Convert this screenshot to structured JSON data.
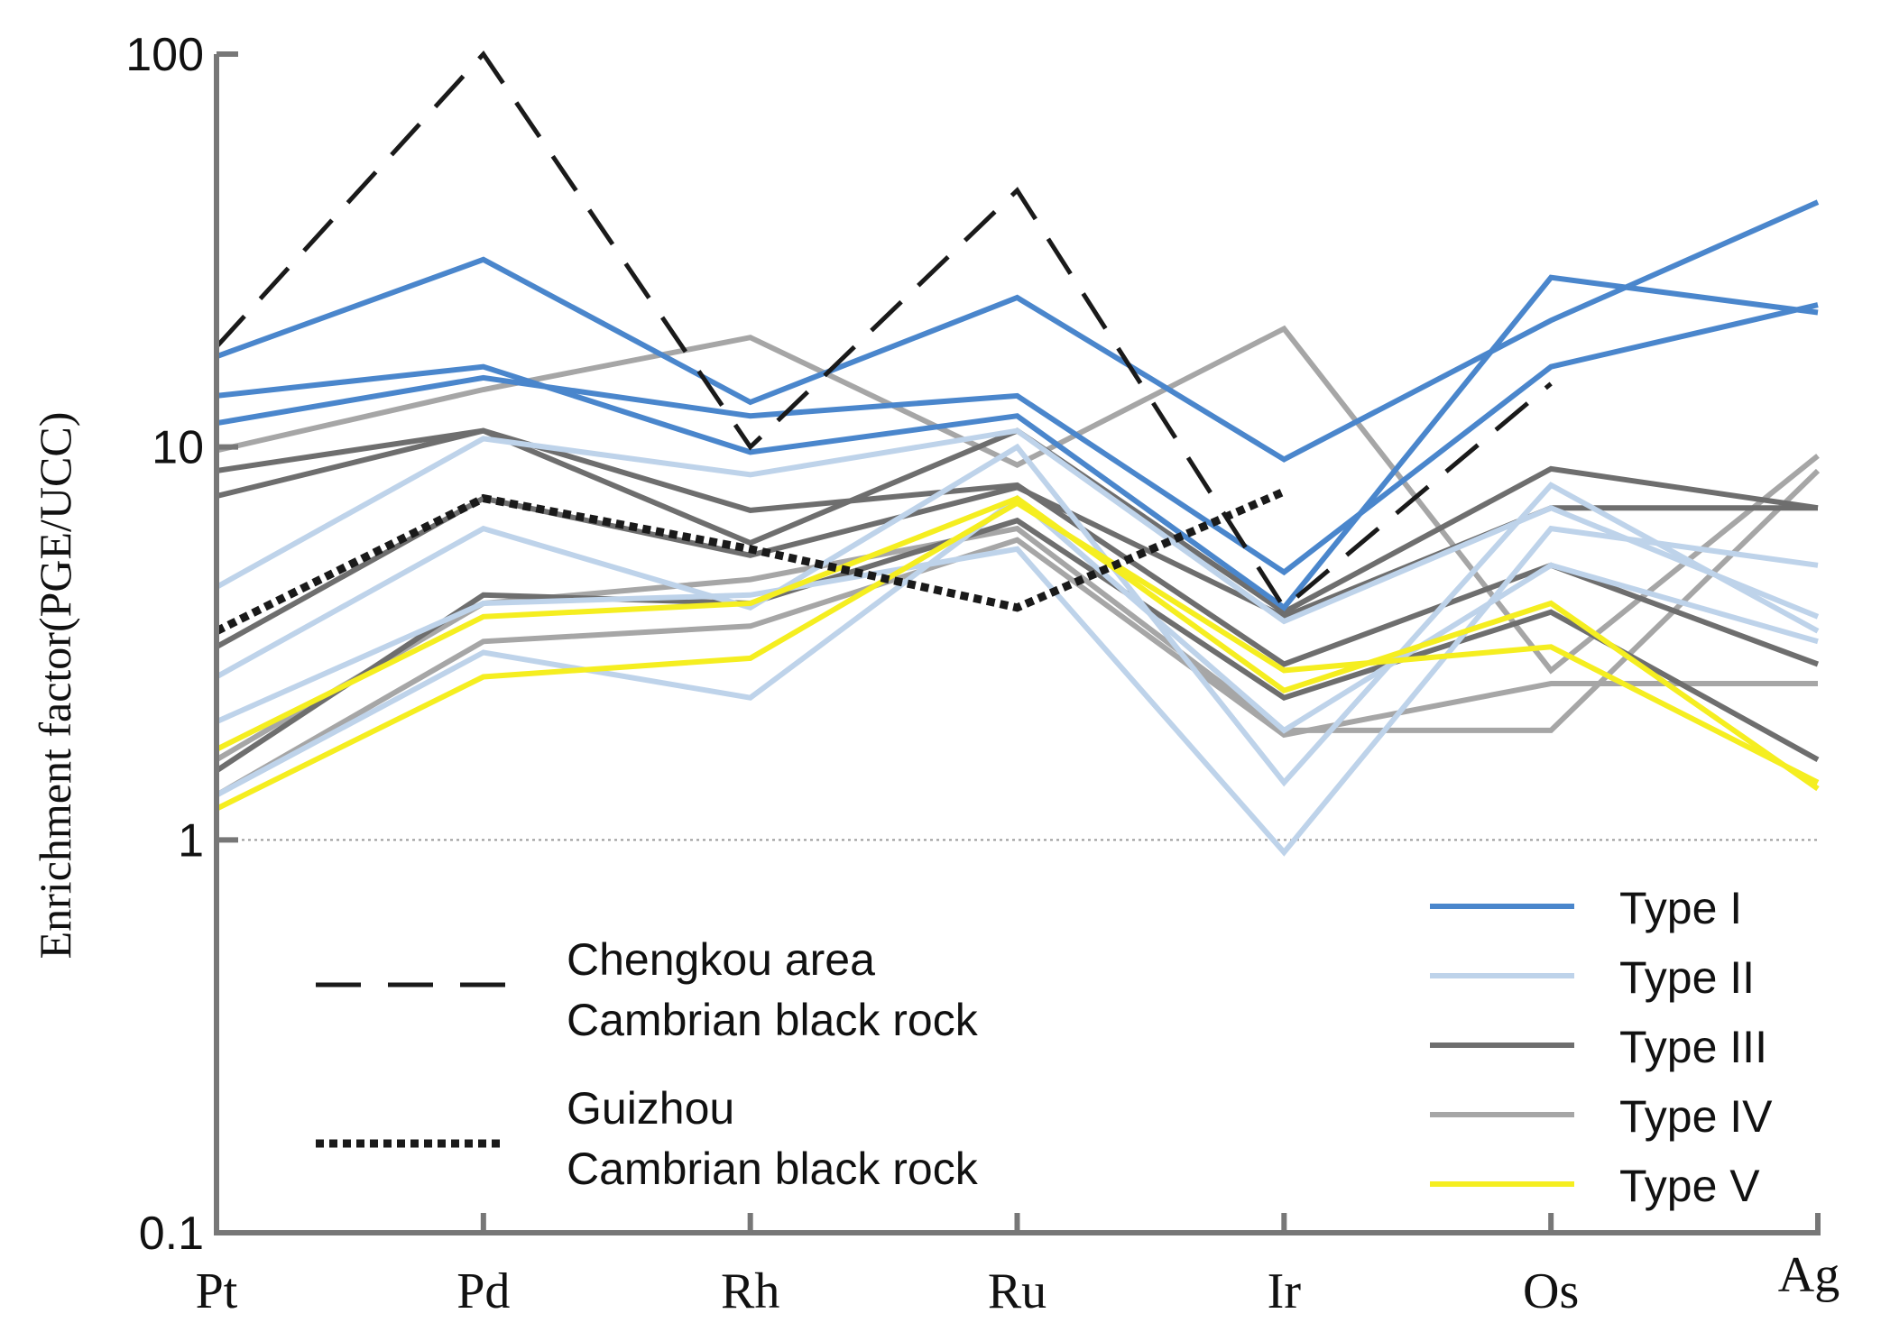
{
  "chart_data": {
    "type": "line",
    "yscale": "log",
    "title": "",
    "xlabel": "",
    "ylabel": "Enrichment factor(PGE/UCC)",
    "ylim": [
      0.1,
      100
    ],
    "yticks": [
      "100",
      "10",
      "1",
      "0.1"
    ],
    "reference_line": 1,
    "categories": [
      "Pt",
      "Pd",
      "Rh",
      "Ru",
      "Ir",
      "Os",
      "Ag"
    ],
    "colors": {
      "Type I": "#4a86cc",
      "Type II": "#bed3ea",
      "Type III": "#6e6e6e",
      "Type IV": "#a6a6a6",
      "Type V": "#f5ee20",
      "Chengkou": "#1a1a1a",
      "Guizhou": "#1a1a1a",
      "reference": "#999999",
      "axis": "#777777"
    },
    "legend": [
      {
        "group": "Type I",
        "label": "Type I"
      },
      {
        "group": "Type II",
        "label": "Type II"
      },
      {
        "group": "Type III",
        "label": "Type III"
      },
      {
        "group": "Type IV",
        "label": "Type IV"
      },
      {
        "group": "Type V",
        "label": "Type V"
      }
    ],
    "reference_legend": [
      {
        "group": "Chengkou",
        "line1": "Chengkou area",
        "line2": "Cambrian black rock"
      },
      {
        "group": "Guizhou",
        "line1": "Guizhou",
        "line2": "Cambrian black rock"
      }
    ],
    "series": [
      {
        "name": "Type I-1",
        "group": "Type I",
        "values": [
          17,
          30,
          13,
          24,
          9.3,
          21,
          42
        ]
      },
      {
        "name": "Type I-2",
        "group": "Type I",
        "values": [
          13.5,
          16,
          9.7,
          12,
          3.9,
          27,
          22
        ]
      },
      {
        "name": "Type I-3",
        "group": "Type I",
        "values": [
          11.5,
          15,
          12,
          13.5,
          4.8,
          16,
          23
        ]
      },
      {
        "name": "Type II-1",
        "group": "Type II",
        "values": [
          4.4,
          10.5,
          8.5,
          11,
          3.6,
          7,
          3.7
        ]
      },
      {
        "name": "Type II-2",
        "group": "Type II",
        "values": [
          2.6,
          6.2,
          3.9,
          10,
          1.4,
          8,
          3.4
        ]
      },
      {
        "name": "Type II-3",
        "group": "Type II",
        "values": [
          2,
          4,
          4.2,
          5.5,
          0.93,
          6.2,
          5
        ]
      },
      {
        "name": "Type II-4",
        "group": "Type II",
        "values": [
          1.3,
          3,
          2.3,
          7.4,
          1.9,
          5,
          3.2
        ]
      },
      {
        "name": "Type III-1",
        "group": "Type III",
        "values": [
          8.7,
          11,
          5.7,
          11,
          3.8,
          8.8,
          7
        ]
      },
      {
        "name": "Type III-2",
        "group": "Type III",
        "values": [
          7.5,
          11,
          6.9,
          8,
          2.8,
          5,
          2.8
        ]
      },
      {
        "name": "Type III-3",
        "group": "Type III",
        "values": [
          3.1,
          7.4,
          5.3,
          7.9,
          3.7,
          7,
          7
        ]
      },
      {
        "name": "Type III-4",
        "group": "Type III",
        "values": [
          1.5,
          4.2,
          4,
          6.5,
          2.3,
          3.8,
          1.6
        ]
      },
      {
        "name": "Type IV-1",
        "group": "Type IV",
        "values": [
          9.8,
          14,
          19,
          9,
          20,
          2.7,
          9.5
        ]
      },
      {
        "name": "Type IV-2",
        "group": "Type IV",
        "values": [
          1.6,
          4,
          4.6,
          6.2,
          1.9,
          1.9,
          8.7
        ]
      },
      {
        "name": "Type IV-3",
        "group": "Type IV",
        "values": [
          1.3,
          3.2,
          3.5,
          5.8,
          1.85,
          2.5,
          2.5
        ]
      },
      {
        "name": "Type V-1",
        "group": "Type V",
        "values": [
          1.7,
          3.7,
          4,
          7.4,
          2.4,
          4,
          1.35
        ]
      },
      {
        "name": "Type V-2",
        "group": "Type V",
        "values": [
          1.2,
          2.6,
          2.9,
          7.2,
          2.7,
          3.1,
          1.4
        ]
      },
      {
        "name": "Chengkou area Cambrian black rock",
        "group": "Chengkou",
        "dash": "dashed",
        "values": [
          18,
          100,
          10,
          45,
          3.9,
          14.5,
          null
        ]
      },
      {
        "name": "Guizhou Cambrian black rock",
        "group": "Guizhou",
        "dash": "dotted",
        "values": [
          3.4,
          7.4,
          5.5,
          3.9,
          7.7,
          null,
          null
        ]
      }
    ]
  }
}
